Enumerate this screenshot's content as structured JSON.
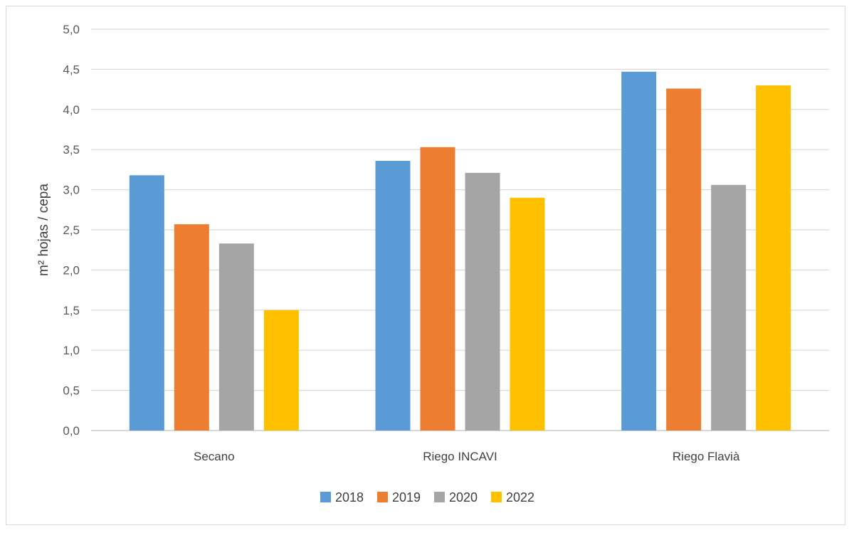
{
  "chart_data": {
    "type": "bar",
    "title": "",
    "xlabel": "",
    "ylabel": "m² hojas / cepa",
    "categories": [
      "Secano",
      "Riego INCAVI",
      "Riego Flavià"
    ],
    "series": [
      {
        "name": "2018",
        "color": "#5b9bd5",
        "values": [
          3.18,
          3.36,
          4.47
        ]
      },
      {
        "name": "2019",
        "color": "#ed7d31",
        "values": [
          2.57,
          3.53,
          4.26
        ]
      },
      {
        "name": "2020",
        "color": "#a5a5a5",
        "values": [
          2.33,
          3.21,
          3.06
        ]
      },
      {
        "name": "2022",
        "color": "#ffc000",
        "values": [
          1.5,
          2.9,
          4.3
        ]
      }
    ],
    "ylim": [
      0,
      5
    ],
    "ytick_step": 0.5,
    "ytick_labels": [
      "0,0",
      "0,5",
      "1,0",
      "1,5",
      "2,0",
      "2,5",
      "3,0",
      "3,5",
      "4,0",
      "4,5",
      "5,0"
    ],
    "grid": true,
    "legend_position": "bottom"
  }
}
